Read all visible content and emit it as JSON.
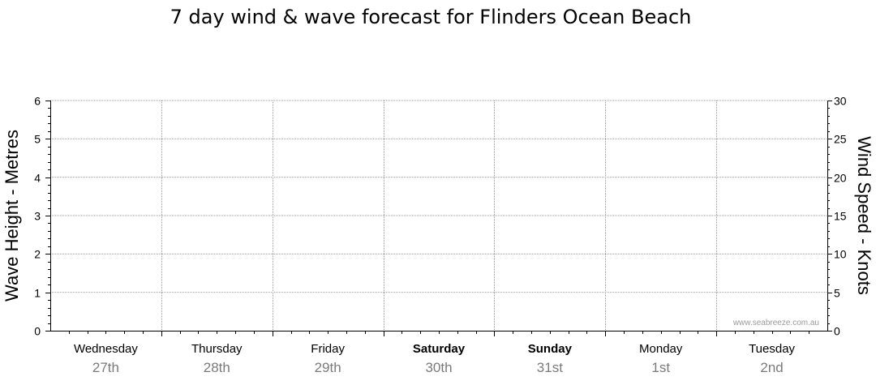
{
  "chart_data": {
    "type": "line",
    "title": "7 day wind & wave forecast for Flinders Ocean Beach",
    "left_axis": {
      "label": "Wave Height - Metres",
      "range": [
        0,
        6
      ],
      "ticks": [
        0,
        1,
        2,
        3,
        4,
        5,
        6
      ]
    },
    "right_axis": {
      "label": "Wind Speed - Knots",
      "range": [
        0,
        30
      ],
      "ticks": [
        0,
        5,
        10,
        15,
        20,
        25,
        30
      ]
    },
    "days": [
      {
        "name": "Wednesday",
        "date": "27th",
        "bold": false
      },
      {
        "name": "Thursday",
        "date": "28th",
        "bold": false
      },
      {
        "name": "Friday",
        "date": "29th",
        "bold": false
      },
      {
        "name": "Saturday",
        "date": "30th",
        "bold": true
      },
      {
        "name": "Sunday",
        "date": "31st",
        "bold": true
      },
      {
        "name": "Monday",
        "date": "1st",
        "bold": false
      },
      {
        "name": "Tuesday",
        "date": "2nd",
        "bold": false
      }
    ],
    "series": [],
    "grid": true,
    "watermark": "www.seabreeze.com.au"
  },
  "colors": {
    "axis": "#000000",
    "grid": "#9a9a9a",
    "date": "#7a7a7a",
    "watermark": "#9a9a9a"
  }
}
